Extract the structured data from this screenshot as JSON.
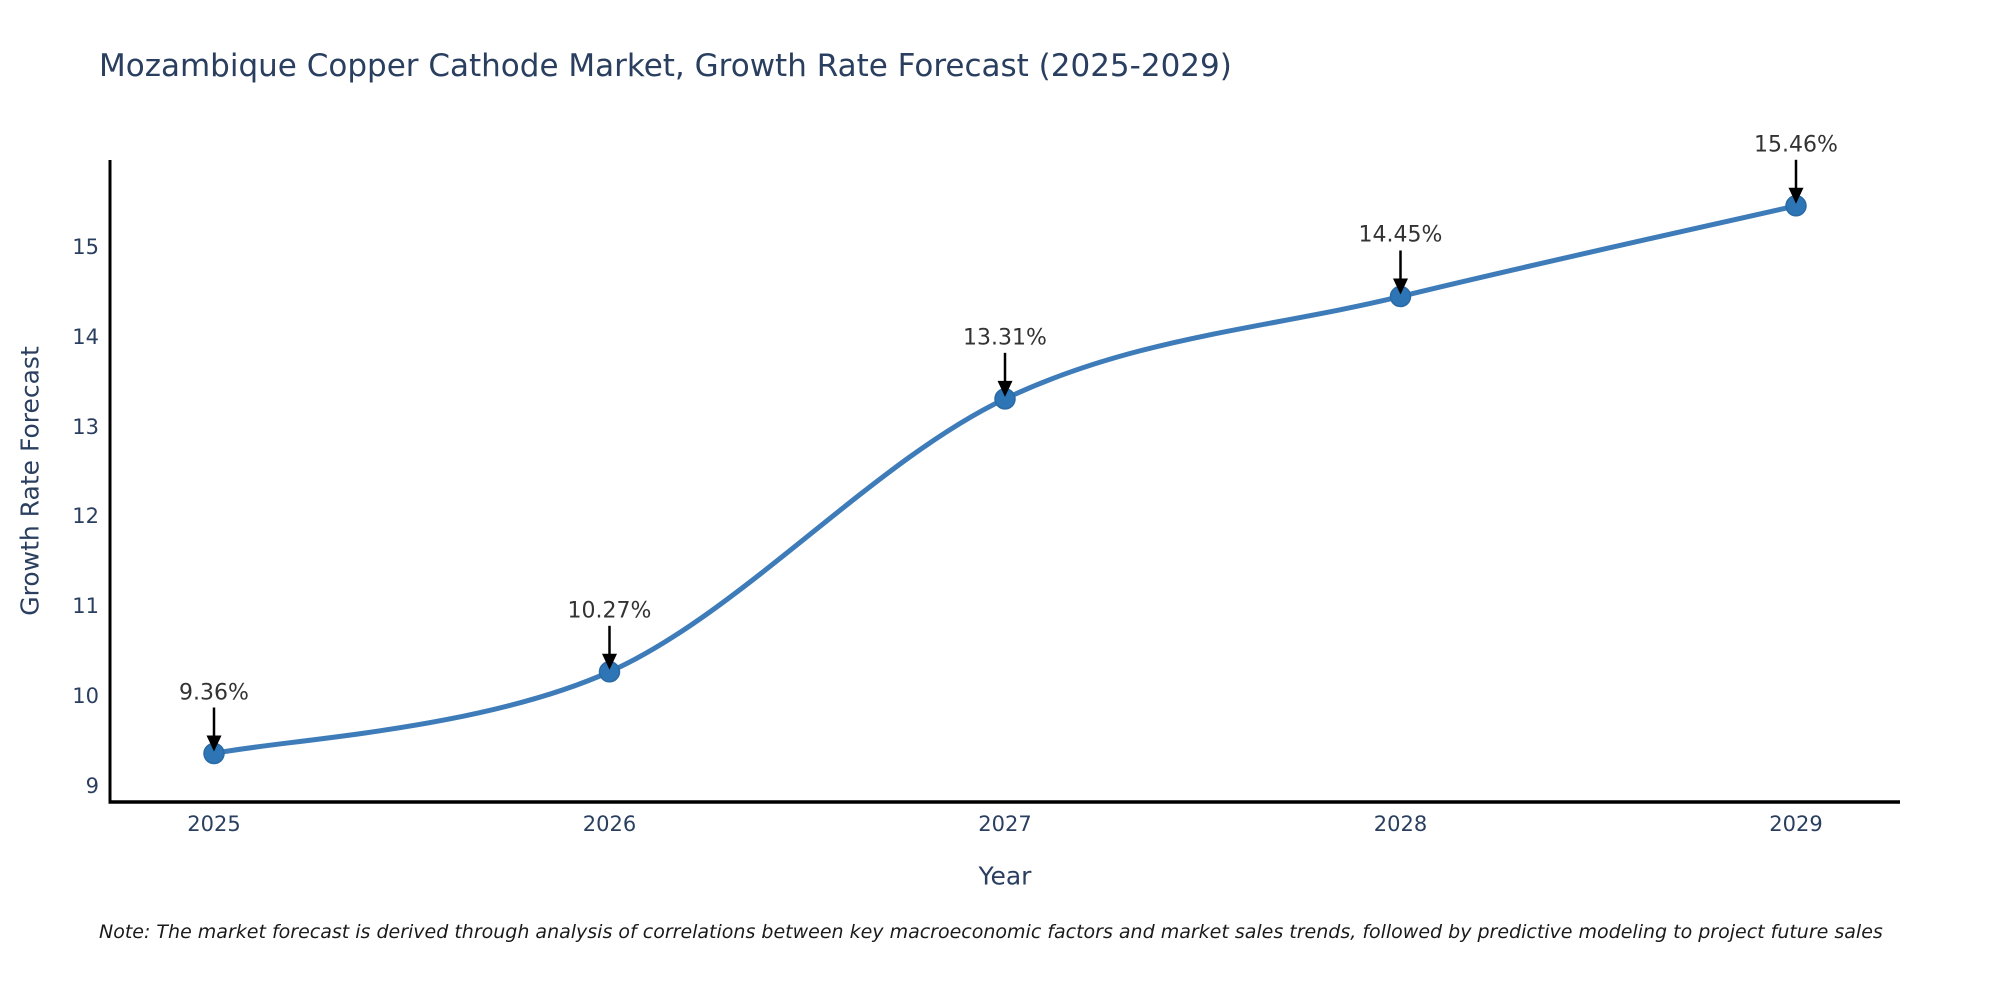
{
  "chart": {
    "title": "Mozambique Copper Cathode Market, Growth Rate Forecast (2025-2029)",
    "xlabel": "Year",
    "ylabel": "Growth Rate Forecast",
    "note": "Note: The market forecast is derived through analysis of correlations between key macroeconomic factors and market sales trends, followed by predictive modeling to project future sales"
  },
  "chart_data": {
    "type": "line",
    "title": "Mozambique Copper Cathode Market, Growth Rate Forecast (2025-2029)",
    "xlabel": "Year",
    "ylabel": "Growth Rate Forecast",
    "x": [
      2025,
      2026,
      2027,
      2028,
      2029
    ],
    "values": [
      9.36,
      10.27,
      13.31,
      14.45,
      15.46
    ],
    "point_labels": [
      "9.36%",
      "10.27%",
      "13.31%",
      "14.45%",
      "15.46%"
    ],
    "xtick_labels": [
      "2025",
      "2026",
      "2027",
      "2028",
      "2029"
    ],
    "yticks": [
      9,
      10,
      11,
      12,
      13,
      14,
      15
    ],
    "ylim": [
      8.82,
      15.97
    ],
    "line_shape": "spline",
    "grid": false,
    "legend": "none",
    "annotations_arrow": "down",
    "colors": {
      "line": "#3e7cb9",
      "marker": "#2e75b6",
      "marker_edge": "#2a6aa5",
      "axis": "#000000",
      "axis_text": "#2a3f5f",
      "annotation_text": "#333333",
      "arrow": "#000000",
      "background": "#ffffff"
    }
  }
}
